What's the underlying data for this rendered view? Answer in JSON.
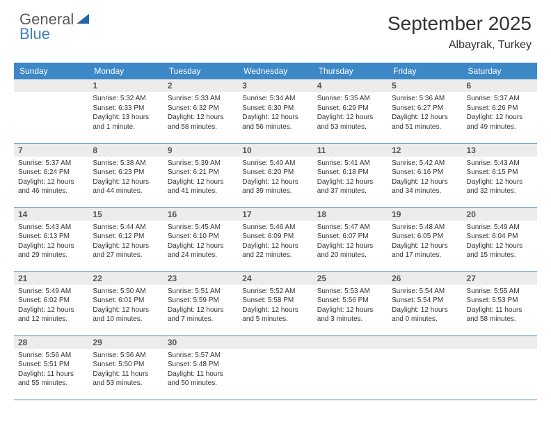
{
  "brand": {
    "line1": "General",
    "line2": "Blue"
  },
  "title": "September 2025",
  "location": "Albayrak, Turkey",
  "day_headers": [
    "Sunday",
    "Monday",
    "Tuesday",
    "Wednesday",
    "Thursday",
    "Friday",
    "Saturday"
  ],
  "colors": {
    "header_bg": "#3d88c7",
    "header_text": "#ffffff",
    "daynum_bg": "#ececec",
    "row_border": "#3d88c7",
    "body_text": "#333333",
    "logo_gray": "#5a5a5a",
    "logo_blue": "#3d7fc1"
  },
  "weeks": [
    [
      null,
      {
        "n": "1",
        "sr": "Sunrise: 5:32 AM",
        "ss": "Sunset: 6:33 PM",
        "dl": "Daylight: 13 hours and 1 minute."
      },
      {
        "n": "2",
        "sr": "Sunrise: 5:33 AM",
        "ss": "Sunset: 6:32 PM",
        "dl": "Daylight: 12 hours and 58 minutes."
      },
      {
        "n": "3",
        "sr": "Sunrise: 5:34 AM",
        "ss": "Sunset: 6:30 PM",
        "dl": "Daylight: 12 hours and 56 minutes."
      },
      {
        "n": "4",
        "sr": "Sunrise: 5:35 AM",
        "ss": "Sunset: 6:29 PM",
        "dl": "Daylight: 12 hours and 53 minutes."
      },
      {
        "n": "5",
        "sr": "Sunrise: 5:36 AM",
        "ss": "Sunset: 6:27 PM",
        "dl": "Daylight: 12 hours and 51 minutes."
      },
      {
        "n": "6",
        "sr": "Sunrise: 5:37 AM",
        "ss": "Sunset: 6:26 PM",
        "dl": "Daylight: 12 hours and 49 minutes."
      }
    ],
    [
      {
        "n": "7",
        "sr": "Sunrise: 5:37 AM",
        "ss": "Sunset: 6:24 PM",
        "dl": "Daylight: 12 hours and 46 minutes."
      },
      {
        "n": "8",
        "sr": "Sunrise: 5:38 AM",
        "ss": "Sunset: 6:23 PM",
        "dl": "Daylight: 12 hours and 44 minutes."
      },
      {
        "n": "9",
        "sr": "Sunrise: 5:39 AM",
        "ss": "Sunset: 6:21 PM",
        "dl": "Daylight: 12 hours and 41 minutes."
      },
      {
        "n": "10",
        "sr": "Sunrise: 5:40 AM",
        "ss": "Sunset: 6:20 PM",
        "dl": "Daylight: 12 hours and 39 minutes."
      },
      {
        "n": "11",
        "sr": "Sunrise: 5:41 AM",
        "ss": "Sunset: 6:18 PM",
        "dl": "Daylight: 12 hours and 37 minutes."
      },
      {
        "n": "12",
        "sr": "Sunrise: 5:42 AM",
        "ss": "Sunset: 6:16 PM",
        "dl": "Daylight: 12 hours and 34 minutes."
      },
      {
        "n": "13",
        "sr": "Sunrise: 5:43 AM",
        "ss": "Sunset: 6:15 PM",
        "dl": "Daylight: 12 hours and 32 minutes."
      }
    ],
    [
      {
        "n": "14",
        "sr": "Sunrise: 5:43 AM",
        "ss": "Sunset: 6:13 PM",
        "dl": "Daylight: 12 hours and 29 minutes."
      },
      {
        "n": "15",
        "sr": "Sunrise: 5:44 AM",
        "ss": "Sunset: 6:12 PM",
        "dl": "Daylight: 12 hours and 27 minutes."
      },
      {
        "n": "16",
        "sr": "Sunrise: 5:45 AM",
        "ss": "Sunset: 6:10 PM",
        "dl": "Daylight: 12 hours and 24 minutes."
      },
      {
        "n": "17",
        "sr": "Sunrise: 5:46 AM",
        "ss": "Sunset: 6:09 PM",
        "dl": "Daylight: 12 hours and 22 minutes."
      },
      {
        "n": "18",
        "sr": "Sunrise: 5:47 AM",
        "ss": "Sunset: 6:07 PM",
        "dl": "Daylight: 12 hours and 20 minutes."
      },
      {
        "n": "19",
        "sr": "Sunrise: 5:48 AM",
        "ss": "Sunset: 6:05 PM",
        "dl": "Daylight: 12 hours and 17 minutes."
      },
      {
        "n": "20",
        "sr": "Sunrise: 5:49 AM",
        "ss": "Sunset: 6:04 PM",
        "dl": "Daylight: 12 hours and 15 minutes."
      }
    ],
    [
      {
        "n": "21",
        "sr": "Sunrise: 5:49 AM",
        "ss": "Sunset: 6:02 PM",
        "dl": "Daylight: 12 hours and 12 minutes."
      },
      {
        "n": "22",
        "sr": "Sunrise: 5:50 AM",
        "ss": "Sunset: 6:01 PM",
        "dl": "Daylight: 12 hours and 10 minutes."
      },
      {
        "n": "23",
        "sr": "Sunrise: 5:51 AM",
        "ss": "Sunset: 5:59 PM",
        "dl": "Daylight: 12 hours and 7 minutes."
      },
      {
        "n": "24",
        "sr": "Sunrise: 5:52 AM",
        "ss": "Sunset: 5:58 PM",
        "dl": "Daylight: 12 hours and 5 minutes."
      },
      {
        "n": "25",
        "sr": "Sunrise: 5:53 AM",
        "ss": "Sunset: 5:56 PM",
        "dl": "Daylight: 12 hours and 3 minutes."
      },
      {
        "n": "26",
        "sr": "Sunrise: 5:54 AM",
        "ss": "Sunset: 5:54 PM",
        "dl": "Daylight: 12 hours and 0 minutes."
      },
      {
        "n": "27",
        "sr": "Sunrise: 5:55 AM",
        "ss": "Sunset: 5:53 PM",
        "dl": "Daylight: 11 hours and 58 minutes."
      }
    ],
    [
      {
        "n": "28",
        "sr": "Sunrise: 5:56 AM",
        "ss": "Sunset: 5:51 PM",
        "dl": "Daylight: 11 hours and 55 minutes."
      },
      {
        "n": "29",
        "sr": "Sunrise: 5:56 AM",
        "ss": "Sunset: 5:50 PM",
        "dl": "Daylight: 11 hours and 53 minutes."
      },
      {
        "n": "30",
        "sr": "Sunrise: 5:57 AM",
        "ss": "Sunset: 5:48 PM",
        "dl": "Daylight: 11 hours and 50 minutes."
      },
      null,
      null,
      null,
      null
    ]
  ]
}
